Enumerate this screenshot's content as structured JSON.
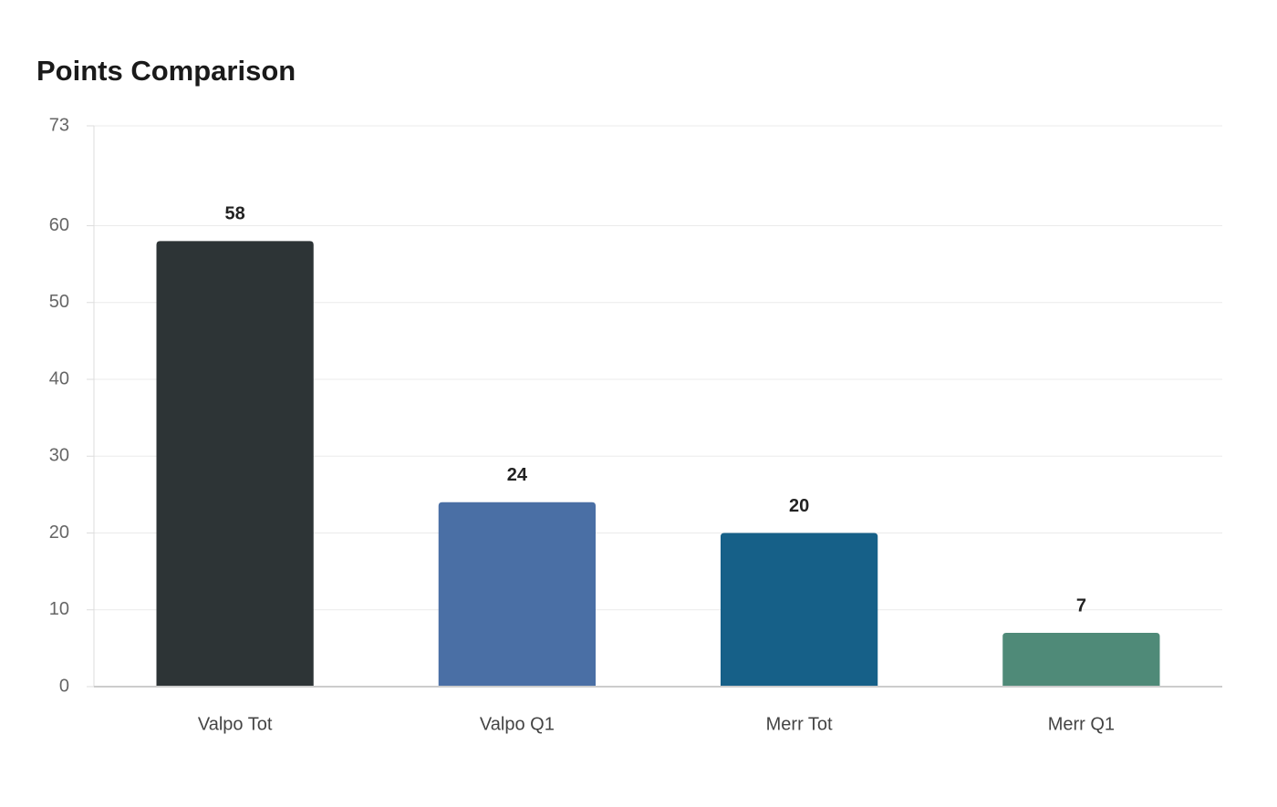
{
  "chart_data": {
    "type": "bar",
    "title": "Points Comparison",
    "categories": [
      "Valpo Tot",
      "Valpo Q1",
      "Merr Tot",
      "Merr Q1"
    ],
    "values": [
      58,
      24,
      20,
      7
    ],
    "colors": [
      "#2d3436",
      "#4a6fa5",
      "#166088",
      "#4f8a78"
    ],
    "ylim": [
      0,
      73
    ],
    "yticks": [
      0,
      10,
      20,
      30,
      40,
      50,
      60,
      73
    ],
    "grid": true
  }
}
